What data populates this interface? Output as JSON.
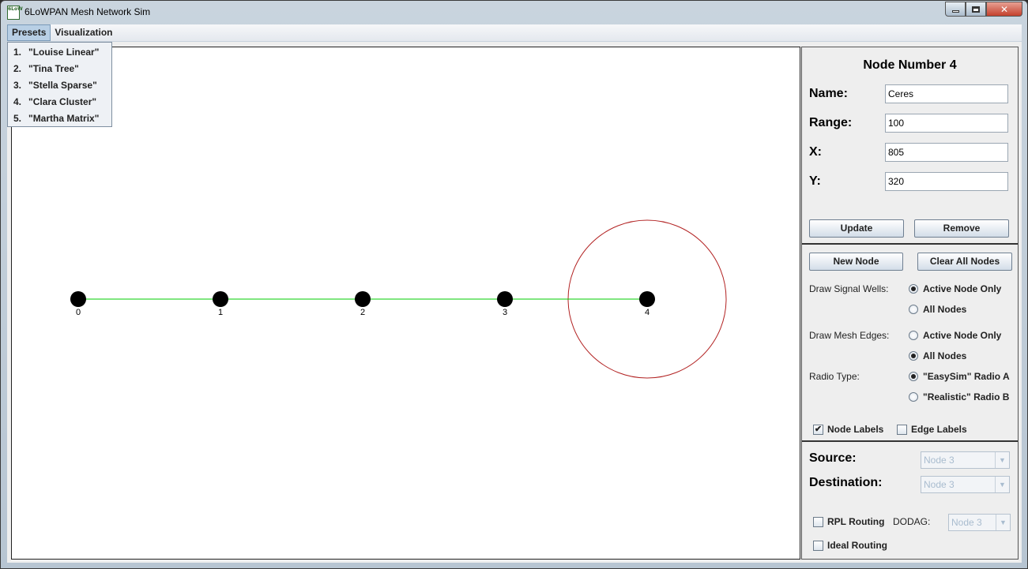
{
  "window": {
    "title": "6LoWPAN Mesh Network Sim",
    "icon": "app-icon",
    "icon_text": "6LoW"
  },
  "menu": {
    "items": [
      "Presets",
      "Visualization"
    ],
    "presets": [
      {
        "num": "1.",
        "label": "\"Louise Linear\""
      },
      {
        "num": "2.",
        "label": "\"Tina Tree\""
      },
      {
        "num": "3.",
        "label": "\"Stella Sparse\""
      },
      {
        "num": "4.",
        "label": "\"Clara Cluster\""
      },
      {
        "num": "5.",
        "label": "\"Martha Matrix\""
      }
    ]
  },
  "network": {
    "nodes": [
      {
        "label": "0"
      },
      {
        "label": "1"
      },
      {
        "label": "2"
      },
      {
        "label": "3"
      },
      {
        "label": "4"
      }
    ],
    "edge_color": "#00cc00",
    "range_color": "#b22222"
  },
  "node_panel": {
    "title": "Node Number 4",
    "name_label": "Name:",
    "name_value": "Ceres",
    "range_label": "Range:",
    "range_value": "100",
    "x_label": "X:",
    "x_value": "805",
    "y_label": "Y:",
    "y_value": "320",
    "update_label": "Update",
    "remove_label": "Remove"
  },
  "display_panel": {
    "new_node_label": "New Node",
    "clear_label": "Clear All Nodes",
    "signal_wells_label": "Draw Signal Wells:",
    "signal_wells_options": [
      "Active Node Only",
      "All Nodes"
    ],
    "signal_wells_selected": 0,
    "mesh_edges_label": "Draw Mesh Edges:",
    "mesh_edges_options": [
      "Active Node Only",
      "All Nodes"
    ],
    "mesh_edges_selected": 1,
    "radio_type_label": "Radio Type:",
    "radio_type_options": [
      "\"EasySim\" Radio A",
      "\"Realistic\" Radio B"
    ],
    "radio_type_selected": 0,
    "node_labels": "Node Labels",
    "node_labels_checked": true,
    "edge_labels": "Edge Labels",
    "edge_labels_checked": false
  },
  "route_panel": {
    "source_label": "Source:",
    "source_value": "Node 3",
    "destination_label": "Destination:",
    "destination_value": "Node 3",
    "rpl_label": "RPL Routing",
    "rpl_checked": false,
    "dodag_label": "DODAG:",
    "dodag_value": "Node 3",
    "ideal_label": "Ideal Routing",
    "ideal_checked": false
  }
}
